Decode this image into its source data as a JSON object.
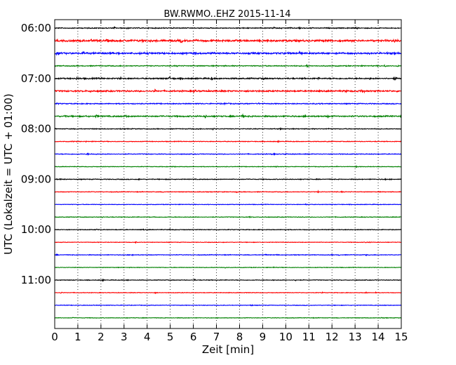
{
  "chart_data": {
    "type": "line",
    "title": "BW.RWMO..EHZ 2015-11-14",
    "xlabel": "Zeit  [min]",
    "ylabel": "UTC (Lokalzeit = UTC + 01:00)",
    "xlim": [
      0,
      15
    ],
    "x_ticks": [
      "0",
      "1",
      "2",
      "3",
      "4",
      "5",
      "6",
      "7",
      "8",
      "9",
      "10",
      "11",
      "12",
      "13",
      "14",
      "15"
    ],
    "y_ticks": [
      "06:00",
      "07:00",
      "08:00",
      "09:00",
      "10:00",
      "11:00"
    ],
    "grid": {
      "x": true,
      "y": false,
      "style": "dotted"
    },
    "color_cycle": [
      "#000000",
      "#ff0000",
      "#0000ff",
      "#008000"
    ],
    "row_interval_min": 15,
    "rows": [
      {
        "time": "06:00",
        "color": "#000000",
        "amplitude": 0.5
      },
      {
        "time": "06:15",
        "color": "#ff0000",
        "amplitude": 1.0
      },
      {
        "time": "06:30",
        "color": "#0000ff",
        "amplitude": 0.9
      },
      {
        "time": "06:45",
        "color": "#008000",
        "amplitude": 0.5
      },
      {
        "time": "07:00",
        "color": "#000000",
        "amplitude": 0.7
      },
      {
        "time": "07:15",
        "color": "#ff0000",
        "amplitude": 0.8
      },
      {
        "time": "07:30",
        "color": "#0000ff",
        "amplitude": 0.5
      },
      {
        "time": "07:45",
        "color": "#008000",
        "amplitude": 0.7
      },
      {
        "time": "08:00",
        "color": "#000000",
        "amplitude": 0.4
      },
      {
        "time": "08:15",
        "color": "#ff0000",
        "amplitude": 0.35
      },
      {
        "time": "08:30",
        "color": "#0000ff",
        "amplitude": 0.4
      },
      {
        "time": "08:45",
        "color": "#008000",
        "amplitude": 0.3
      },
      {
        "time": "09:00",
        "color": "#000000",
        "amplitude": 0.4
      },
      {
        "time": "09:15",
        "color": "#ff0000",
        "amplitude": 0.35
      },
      {
        "time": "09:30",
        "color": "#0000ff",
        "amplitude": 0.3
      },
      {
        "time": "09:45",
        "color": "#008000",
        "amplitude": 0.35
      },
      {
        "time": "10:00",
        "color": "#000000",
        "amplitude": 0.35
      },
      {
        "time": "10:15",
        "color": "#ff0000",
        "amplitude": 0.3
      },
      {
        "time": "10:30",
        "color": "#0000ff",
        "amplitude": 0.35
      },
      {
        "time": "10:45",
        "color": "#008000",
        "amplitude": 0.3
      },
      {
        "time": "11:00",
        "color": "#000000",
        "amplitude": 0.35
      },
      {
        "time": "11:15",
        "color": "#ff0000",
        "amplitude": 0.3
      },
      {
        "time": "11:30",
        "color": "#0000ff",
        "amplitude": 0.3
      },
      {
        "time": "11:45",
        "color": "#008000",
        "amplitude": 0.3
      }
    ]
  }
}
